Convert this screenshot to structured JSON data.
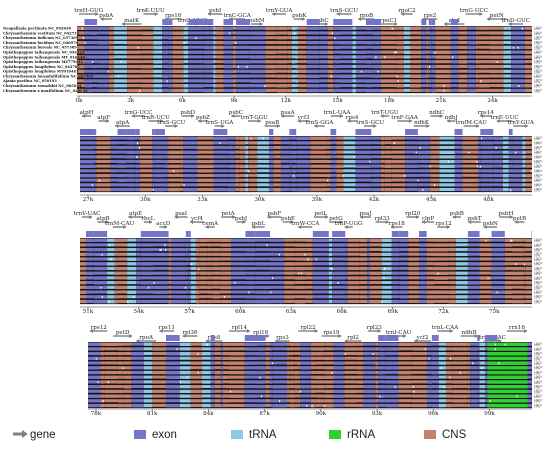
{
  "rows": [
    {
      "gene_labels": [
        "trnH-GUG",
        "psbA",
        "matK",
        "trnK-UUU",
        "rps16",
        "trnQ-UUG",
        "psbI",
        "trnC-GCA",
        "psbM",
        "trnY-GUA",
        "psbK",
        "psbC",
        "trnS-GCU",
        "rpoB",
        "rpoC1",
        "rpoC2",
        "rps2",
        "atpI",
        "trnG-UCC",
        "petN",
        "trnD-GUC"
      ],
      "ticks": [
        "0k",
        "3k",
        "6k",
        "9k",
        "12k",
        "15k",
        "18k",
        "21k",
        "24k"
      ],
      "species": [
        "Neopallasia pectinata NC_092636",
        "Chrysanthemum vestitum NC_042735",
        "Chrysanthemum indicum NC_057309",
        "Chrysanthemum lucidum NC_040970",
        "Chrysanthemum boreale NC_057389",
        "Opisthopappus taihangensis NC_054323",
        "Opisthopappus taihangensis MT_016440",
        "Opisthopappus taihangensis MZ779042",
        "Opisthopappus longilobus NC_042787",
        "Opisthopappus longilobus MT016441",
        "Chrysanthemum lavandulifolium NC_057303",
        "Ajania pacifica NC_050193",
        "Chrysanthemum zawadskii NC_065034",
        "Chrysanthemum x morifolium NC_020092"
      ]
    },
    {
      "gene_labels": [
        "atpH",
        "atpF",
        "atpA",
        "trnG-UCC",
        "trnR-UCU",
        "trnS-GCU",
        "psbD",
        "psbZ",
        "trnS-UGA",
        "psbC",
        "trnT-GGU",
        "psaB",
        "psaA",
        "ycf3",
        "trnS-GGA",
        "trnL-UAA",
        "rps4",
        "trnS-GCU",
        "trnT-UGU",
        "trnF-GAA",
        "ndhK",
        "ndhC",
        "ndhJ",
        "trnfM-CAU",
        "rps14",
        "trnE-UUC",
        "trnY-GUA"
      ],
      "ticks": [
        "27k",
        "30k",
        "33k",
        "36k",
        "39k",
        "42k",
        "45k",
        "48k"
      ]
    },
    {
      "gene_labels": [
        "trnV-UAC",
        "atpB",
        "trnM-CAU",
        "atpE",
        "rbcL",
        "accD",
        "psaI",
        "ycf4",
        "cemA",
        "petA",
        "psbJ",
        "psbL",
        "psbF",
        "psbE",
        "trnW-CCA",
        "petL",
        "petG",
        "trnP-UGG",
        "psaJ",
        "rpl33",
        "rps18",
        "rpl20",
        "clpP",
        "rps12",
        "psbB",
        "psbT",
        "psbN",
        "psbH",
        "petB"
      ],
      "ticks": [
        "51k",
        "54k",
        "57k",
        "60k",
        "63k",
        "66k",
        "69k",
        "72k",
        "75k"
      ]
    },
    {
      "gene_labels": [
        "rps12",
        "petD",
        "rpoA",
        "rps11",
        "rpl36",
        "rps8",
        "rpl14",
        "rpl16",
        "rps3",
        "rpl22",
        "rps19",
        "rpl2",
        "rpl23",
        "trnI-CAU",
        "ycf2",
        "trnL-CAA",
        "ndhB",
        "trnV-GAC",
        "rrn16"
      ],
      "ticks": [
        "78k",
        "81k",
        "84k",
        "87k",
        "90k",
        "93k",
        "96k",
        "99k"
      ]
    }
  ],
  "percent_labels": [
    "100%",
    "50%"
  ],
  "legend": [
    {
      "label": "gene",
      "color": "#808080"
    },
    {
      "label": "exon",
      "color": "#7474c8"
    },
    {
      "label": "tRNA",
      "color": "#8ec8e6"
    },
    {
      "label": "rRNA",
      "color": "#2ed12e"
    },
    {
      "label": "CNS",
      "color": "#c5826e"
    }
  ]
}
